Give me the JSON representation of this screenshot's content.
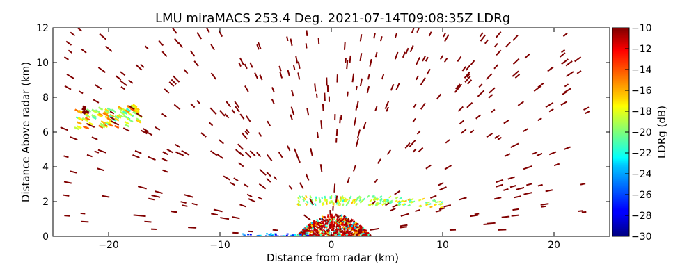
{
  "chart_data": {
    "type": "scatter",
    "title": "LMU miraMACS 253.4 Deg. 2021-07-14T09:08:35Z  LDRg",
    "xlabel": "Distance from radar (km)",
    "ylabel": "Distance Above radar  (km)",
    "xlim": [
      -25,
      25
    ],
    "ylim": [
      0,
      12
    ],
    "xticks": [
      -20,
      -10,
      0,
      10,
      20
    ],
    "xtick_labels": [
      "−20",
      "−10",
      "0",
      "10",
      "20"
    ],
    "yticks": [
      0,
      2,
      4,
      6,
      8,
      10,
      12
    ],
    "ytick_labels": [
      "0",
      "2",
      "4",
      "6",
      "8",
      "10",
      "12"
    ],
    "grid": false,
    "colorbar": {
      "label": "LDRg (dB)",
      "range": [
        -30,
        -10
      ],
      "ticks": [
        -10,
        -12,
        -14,
        -16,
        -18,
        -20,
        -22,
        -24,
        -26,
        -28,
        -30
      ],
      "tick_labels": [
        "−10",
        "−12",
        "−14",
        "−16",
        "−18",
        "−20",
        "−22",
        "−24",
        "−26",
        "−28",
        "−30"
      ],
      "colormap": "jet"
    },
    "features": [
      {
        "name": "near-radar clutter",
        "x": [
          -3,
          3.5
        ],
        "y": [
          0,
          1.2
        ],
        "ldr": [
          -12,
          -24
        ]
      },
      {
        "name": "melting layer band",
        "x": [
          -3,
          10
        ],
        "y": [
          1.8,
          2.3
        ],
        "ldr": [
          -16,
          -20
        ]
      },
      {
        "name": "upper cloud patch",
        "x": [
          -23,
          -17
        ],
        "y": [
          5.8,
          7.7
        ],
        "ldr": [
          -12,
          -22
        ]
      },
      {
        "name": "scattered insect echoes",
        "x": [
          -24,
          23
        ],
        "y": [
          0,
          12
        ],
        "ldr": [
          -10,
          -10
        ]
      }
    ]
  }
}
